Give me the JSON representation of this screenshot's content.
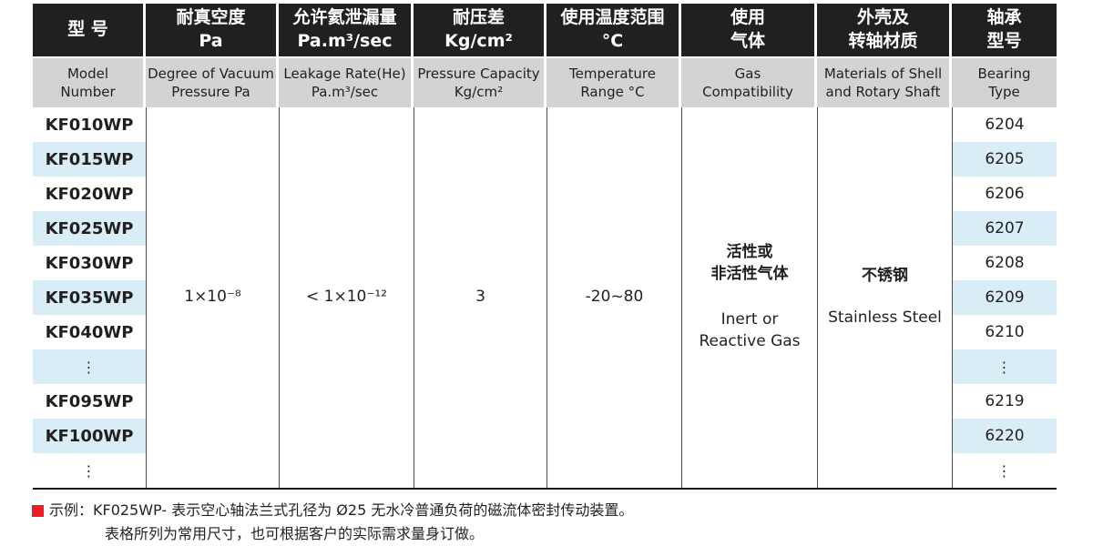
{
  "colors": {
    "header_bg": "#221f20",
    "subheader_bg": "#d2d3d5",
    "row_stripe_blue": "#d9edf7",
    "note_marker_red": "#ed1c24"
  },
  "table": {
    "headers": [
      {
        "zh": "型 号",
        "en": "Model\nNumber"
      },
      {
        "zh": "耐真空度\nPa",
        "en": "Degree of Vacuum\nPressure Pa"
      },
      {
        "zh": "允许氦泄漏量\nPa.m³/sec",
        "en": "Leakage Rate(He)\nPa.m³/sec"
      },
      {
        "zh": "耐压差\nKg/cm²",
        "en": "Pressure Capacity\nKg/cm²"
      },
      {
        "zh": "使用温度范围\n°C",
        "en": "Temperature\nRange °C"
      },
      {
        "zh": "使用\n气体",
        "en": "Gas\nCompatibility"
      },
      {
        "zh": "外壳及\n转轴材质",
        "en": "Materials of Shell\nand Rotary Shaft"
      },
      {
        "zh": "轴承\n型号",
        "en": "Bearing\nType"
      }
    ],
    "rows": [
      {
        "model": "KF010WP",
        "bearing": "6204"
      },
      {
        "model": "KF015WP",
        "bearing": "6205"
      },
      {
        "model": "KF020WP",
        "bearing": "6206"
      },
      {
        "model": "KF025WP",
        "bearing": "6207"
      },
      {
        "model": "KF030WP",
        "bearing": "6208"
      },
      {
        "model": "KF035WP",
        "bearing": "6209"
      },
      {
        "model": "KF040WP",
        "bearing": "6210"
      },
      {
        "model": "⋮",
        "bearing": "⋮"
      },
      {
        "model": "KF095WP",
        "bearing": "6219"
      },
      {
        "model": "KF100WP",
        "bearing": "6220"
      },
      {
        "model": "⋮",
        "bearing": "⋮"
      }
    ],
    "merged": {
      "vacuum": "1×10⁻⁸",
      "leakage": "< 1×10⁻¹²",
      "pressure": "3",
      "temperature": "-20~80",
      "gas_zh": "活性或\n非活性气体",
      "gas_en": "Inert or\nReactive Gas",
      "shell_zh": "不锈钢",
      "shell_en": "Stainless Steel"
    }
  },
  "note": {
    "line1": "示例：KF025WP- 表示空心轴法兰式孔径为 Ø25 无水冷普通负荷的磁流体密封传动装置。",
    "line2": "表格所列为常用尺寸，也可根据客户的实际需求量身订做。"
  }
}
